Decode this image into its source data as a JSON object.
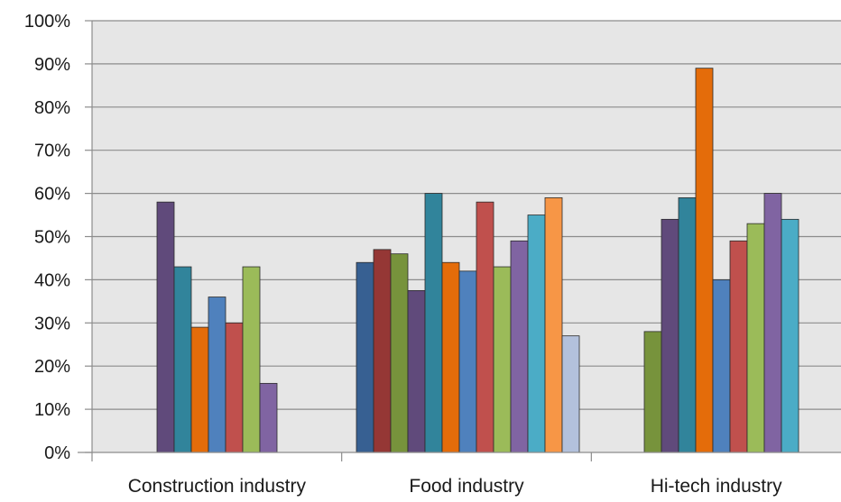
{
  "chart_data": {
    "type": "bar",
    "title": "",
    "xlabel": "",
    "ylabel": "",
    "ylim": [
      0,
      100
    ],
    "y_ticks": [
      0,
      10,
      20,
      30,
      40,
      50,
      60,
      70,
      80,
      90,
      100
    ],
    "y_tick_labels": [
      "0%",
      "10%",
      "20%",
      "30%",
      "40%",
      "50%",
      "60%",
      "70%",
      "80%",
      "90%",
      "100%"
    ],
    "grid": true,
    "legend": "none",
    "categories": [
      "Construction industry",
      "Food industry",
      "Hi-tech industry"
    ],
    "groups": [
      {
        "category": "Construction industry",
        "bars": [
          {
            "value": 58,
            "color": "#604a7b"
          },
          {
            "value": 43,
            "color": "#31849b"
          },
          {
            "value": 29,
            "color": "#e46c0a"
          },
          {
            "value": 36,
            "color": "#4f81bd"
          },
          {
            "value": 30,
            "color": "#c0504d"
          },
          {
            "value": 43,
            "color": "#9bbb59"
          },
          {
            "value": 16,
            "color": "#8064a2"
          }
        ]
      },
      {
        "category": "Food industry",
        "bars": [
          {
            "value": 44,
            "color": "#376092"
          },
          {
            "value": 47,
            "color": "#953735"
          },
          {
            "value": 46,
            "color": "#77933c"
          },
          {
            "value": 37.5,
            "color": "#604a7b"
          },
          {
            "value": 60,
            "color": "#31849b"
          },
          {
            "value": 44,
            "color": "#e46c0a"
          },
          {
            "value": 42,
            "color": "#4f81bd"
          },
          {
            "value": 58,
            "color": "#c0504d"
          },
          {
            "value": 43,
            "color": "#9bbb59"
          },
          {
            "value": 49,
            "color": "#8064a2"
          },
          {
            "value": 55,
            "color": "#4bacc6"
          },
          {
            "value": 59,
            "color": "#f79646"
          },
          {
            "value": 27,
            "color": "#b3c1dc"
          }
        ]
      },
      {
        "category": "Hi-tech industry",
        "bars": [
          {
            "value": 28,
            "color": "#77933c"
          },
          {
            "value": 54,
            "color": "#604a7b"
          },
          {
            "value": 59,
            "color": "#31849b"
          },
          {
            "value": 89,
            "color": "#e46c0a"
          },
          {
            "value": 40,
            "color": "#4f81bd"
          },
          {
            "value": 49,
            "color": "#c0504d"
          },
          {
            "value": 53,
            "color": "#9bbb59"
          },
          {
            "value": 60,
            "color": "#8064a2"
          },
          {
            "value": 54,
            "color": "#4bacc6"
          }
        ]
      }
    ],
    "colors": {
      "plot_background": "#e6e6e6",
      "gridline": "#8c8c8c",
      "axis": "#8c8c8c"
    }
  }
}
